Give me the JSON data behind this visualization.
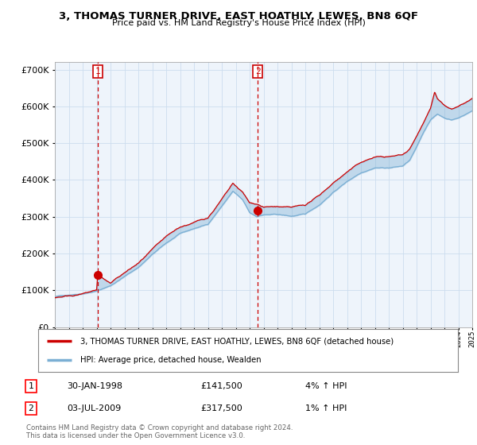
{
  "title": "3, THOMAS TURNER DRIVE, EAST HOATHLY, LEWES, BN8 6QF",
  "subtitle": "Price paid vs. HM Land Registry's House Price Index (HPI)",
  "ylim": [
    0,
    720000
  ],
  "yticks": [
    0,
    100000,
    200000,
    300000,
    400000,
    500000,
    600000,
    700000
  ],
  "sale1_year": 1998.08,
  "sale1_price": 141500,
  "sale2_year": 2009.58,
  "sale2_price": 317500,
  "legend_line1": "3, THOMAS TURNER DRIVE, EAST HOATHLY, LEWES, BN8 6QF (detached house)",
  "legend_line2": "HPI: Average price, detached house, Wealden",
  "table_row1": [
    "1",
    "30-JAN-1998",
    "£141,500",
    "4% ↑ HPI"
  ],
  "table_row2": [
    "2",
    "03-JUL-2009",
    "£317,500",
    "1% ↑ HPI"
  ],
  "footnote": "Contains HM Land Registry data © Crown copyright and database right 2024.\nThis data is licensed under the Open Government Licence v3.0.",
  "line_color_red": "#cc0000",
  "line_color_blue": "#7bafd4",
  "fill_color": "#ddeeff",
  "background_color": "#ffffff",
  "grid_color": "#ccddee",
  "chart_bg": "#eef4fb"
}
